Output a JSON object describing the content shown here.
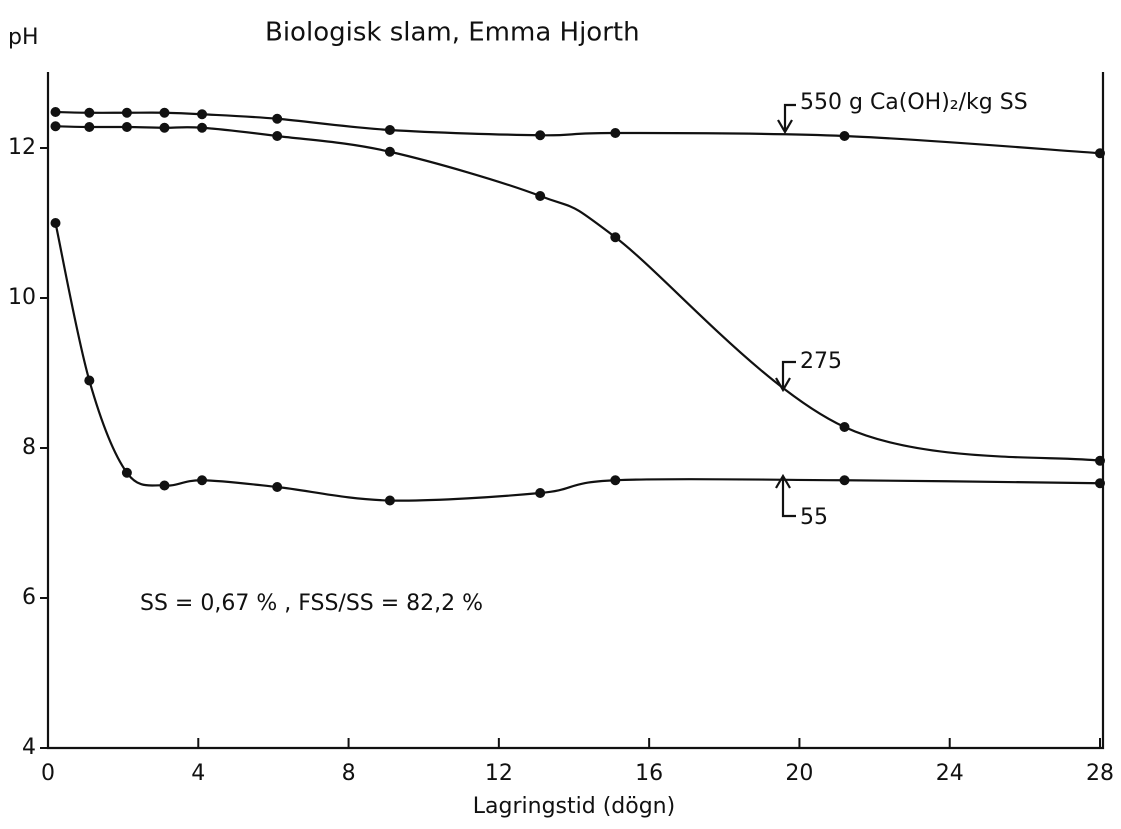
{
  "chart_data": {
    "type": "line",
    "title": "Biologisk slam, Emma Hjorth",
    "y_label": "pH",
    "x_label": "Lagringstid (dögn)",
    "annotation": "SS = 0,67 % , FSS/SS = 82,2 %",
    "x": [
      0.2,
      1.1,
      2.1,
      3.1,
      4.1,
      6.1,
      9.1,
      13.1,
      15.1,
      21.2,
      28
    ],
    "series": [
      {
        "name": "550 g Ca(OH)₂/kg SS",
        "color": "#111111",
        "values": [
          12.48,
          12.47,
          12.47,
          12.47,
          12.45,
          12.39,
          12.24,
          12.17,
          12.2,
          12.16,
          11.93
        ]
      },
      {
        "name": "275",
        "color": "#111111",
        "values": [
          12.29,
          12.28,
          12.28,
          12.27,
          12.27,
          12.16,
          11.95,
          11.36,
          10.81,
          8.28,
          7.83
        ]
      },
      {
        "name": "55",
        "color": "#111111",
        "values": [
          11.0,
          8.9,
          7.67,
          7.5,
          7.57,
          7.48,
          7.3,
          7.4,
          7.57,
          7.57,
          7.53
        ]
      }
    ],
    "xlim": [
      0,
      28
    ],
    "ylim": [
      4,
      13
    ],
    "xticks": [
      0,
      4,
      8,
      12,
      16,
      20,
      24,
      28
    ],
    "yticks": [
      4,
      6,
      8,
      10,
      12
    ],
    "grid": false
  }
}
